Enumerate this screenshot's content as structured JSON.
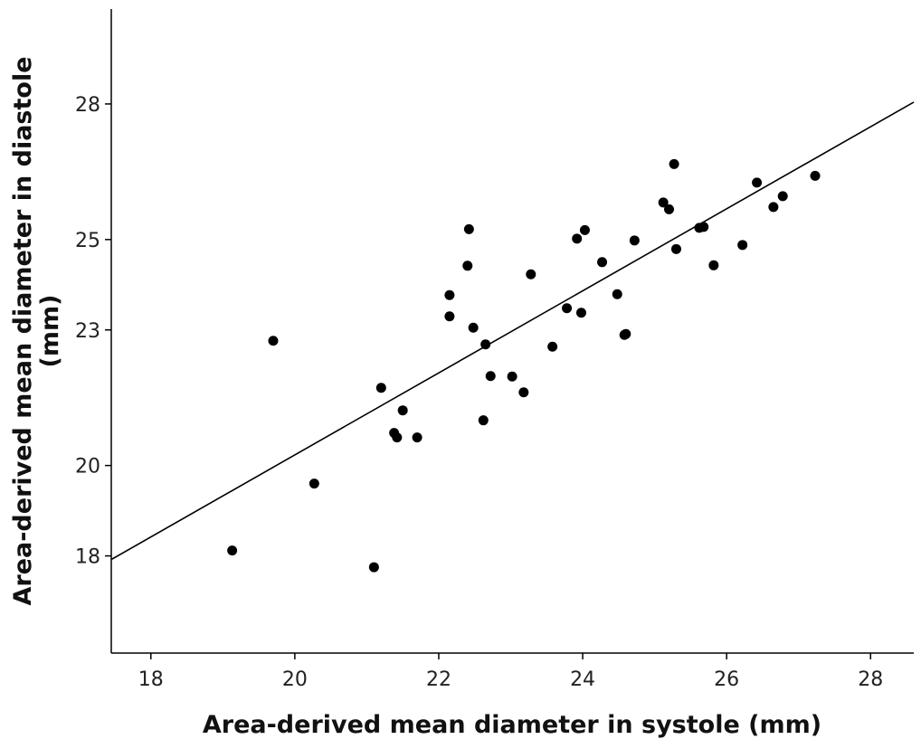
{
  "chart_data": {
    "type": "scatter",
    "xlabel": "Area-derived mean diameter in systole (mm)",
    "ylabel_line1": "Area-derived mean diameter in diastole",
    "ylabel_line2": "(mm)",
    "xlim": [
      17.45,
      28.6
    ],
    "ylim": [
      15.85,
      30.1
    ],
    "x_ticks": [
      18,
      20,
      22,
      24,
      26,
      28
    ],
    "y_ticks": [
      18,
      20,
      23,
      25,
      28
    ],
    "x_tick_labels": [
      "18",
      "20",
      "22",
      "24",
      "26",
      "28"
    ],
    "y_tick_labels": [
      "18",
      "20",
      "23",
      "25",
      "28"
    ],
    "grid": false,
    "legend": "none",
    "marker_color": "#000000",
    "line_color": "#000000",
    "fit_line": {
      "x": [
        17.45,
        28.6
      ],
      "y": [
        17.92,
        28.04
      ]
    },
    "series": [
      {
        "points": [
          [
            19.13,
            18.12
          ],
          [
            19.7,
            22.76
          ],
          [
            20.27,
            19.6
          ],
          [
            21.1,
            17.75
          ],
          [
            21.2,
            21.72
          ],
          [
            21.38,
            20.72
          ],
          [
            21.42,
            20.62
          ],
          [
            21.5,
            21.22
          ],
          [
            21.7,
            20.62
          ],
          [
            22.15,
            23.77
          ],
          [
            22.15,
            23.3
          ],
          [
            22.4,
            24.42
          ],
          [
            22.42,
            25.23
          ],
          [
            22.48,
            23.05
          ],
          [
            22.62,
            21.0
          ],
          [
            22.65,
            22.68
          ],
          [
            22.72,
            21.98
          ],
          [
            23.02,
            21.97
          ],
          [
            23.18,
            21.62
          ],
          [
            23.28,
            24.23
          ],
          [
            23.58,
            22.63
          ],
          [
            23.78,
            23.48
          ],
          [
            23.92,
            25.02
          ],
          [
            23.98,
            23.38
          ],
          [
            24.03,
            25.21
          ],
          [
            24.27,
            24.5
          ],
          [
            24.48,
            23.79
          ],
          [
            24.58,
            22.89
          ],
          [
            24.6,
            22.91
          ],
          [
            24.72,
            24.98
          ],
          [
            25.12,
            25.82
          ],
          [
            25.2,
            25.67
          ],
          [
            25.27,
            26.67
          ],
          [
            25.3,
            24.79
          ],
          [
            25.62,
            25.26
          ],
          [
            25.68,
            25.28
          ],
          [
            25.82,
            24.43
          ],
          [
            26.22,
            24.88
          ],
          [
            26.42,
            26.26
          ],
          [
            26.65,
            25.72
          ],
          [
            26.78,
            25.96
          ],
          [
            27.23,
            26.41
          ]
        ]
      }
    ]
  }
}
